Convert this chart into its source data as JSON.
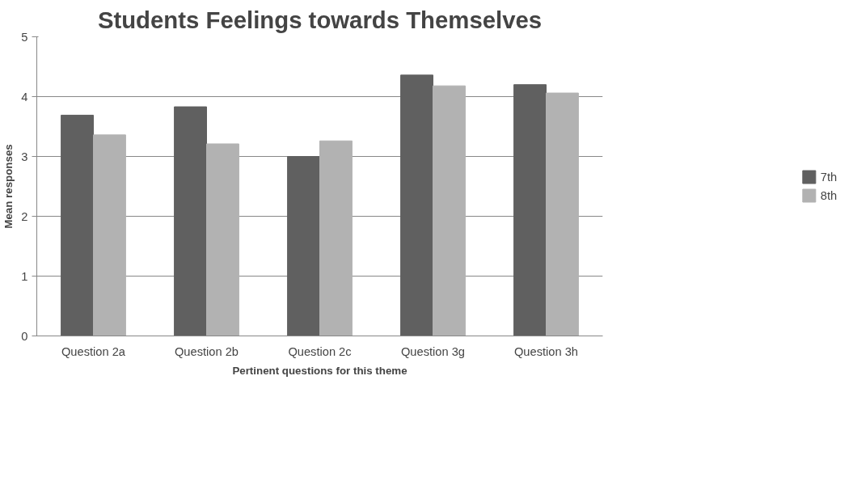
{
  "chart_data": {
    "type": "bar",
    "title": "Students Feelings towards Themselves",
    "xlabel": "Pertinent questions for this theme",
    "ylabel": "Mean responses",
    "categories": [
      "Question 2a",
      "Question 2b",
      "Question 2c",
      "Question 3g",
      "Question 3h"
    ],
    "series": [
      {
        "name": "7th",
        "color": "#606060",
        "values": [
          3.69,
          3.83,
          3.0,
          4.36,
          4.2
        ]
      },
      {
        "name": "8th",
        "color": "#b2b2b2",
        "values": [
          3.36,
          3.21,
          3.26,
          4.18,
          4.06
        ]
      }
    ],
    "ylim": [
      0,
      5
    ],
    "yticks": [
      0,
      1,
      2,
      3,
      4,
      5
    ],
    "grid": "y",
    "legend": "right"
  }
}
